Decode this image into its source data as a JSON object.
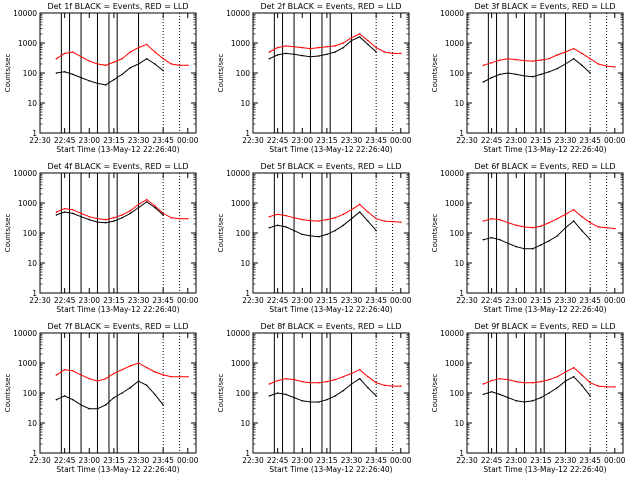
{
  "page": {
    "title": ""
  },
  "axes": {
    "ylabel": "Counts/sec",
    "xlabel_prefix": "Start Time (13-May-12 22:26:40)",
    "x_tick_labels": [
      "22:30",
      "22:45",
      "23:00",
      "23:15",
      "23:30",
      "23:45",
      "00:00"
    ],
    "y_tick_labels": [
      "1",
      "10",
      "100",
      "1000",
      "10000"
    ]
  },
  "colors": {
    "events": "#000000",
    "lld": "#ff0000",
    "frame": "#000000"
  },
  "chart_data": [
    {
      "type": "line",
      "title": "Det 1f BLACK = Events, RED = LLD",
      "xlabel": "Start Time (13-May-12 22:26:40)",
      "ylabel": "Counts/sec",
      "x_ticks": [
        "22:30",
        "22:45",
        "23:00",
        "23:15",
        "23:30",
        "23:45",
        "00:00"
      ],
      "ylim": [
        1,
        10000
      ],
      "yscale": "log",
      "x": [
        "22:40",
        "22:45",
        "22:50",
        "22:55",
        "23:00",
        "23:05",
        "23:10",
        "23:15",
        "23:20",
        "23:25",
        "23:30",
        "23:35",
        "23:40",
        "23:45",
        "23:50",
        "23:55",
        "00:00"
      ],
      "series": [
        {
          "name": "Events",
          "color": "#000000",
          "values": [
            100,
            110,
            90,
            70,
            55,
            45,
            40,
            60,
            90,
            150,
            200,
            300,
            200,
            120,
            null,
            null,
            null
          ]
        },
        {
          "name": "LLD",
          "color": "#ff0000",
          "values": [
            300,
            450,
            500,
            350,
            250,
            200,
            180,
            230,
            300,
            500,
            700,
            900,
            500,
            300,
            200,
            180,
            180
          ]
        }
      ],
      "vlines": [
        "22:43",
        "22:48",
        "22:55",
        "23:05",
        "23:12",
        "23:17",
        "23:30"
      ],
      "dotted_vlines": [
        "23:45",
        "23:55"
      ]
    },
    {
      "type": "line",
      "title": "Det 2f BLACK = Events, RED = LLD",
      "xlabel": "Start Time (13-May-12 22:26:40)",
      "ylabel": "Counts/sec",
      "x_ticks": [
        "22:30",
        "22:45",
        "23:00",
        "23:15",
        "23:30",
        "23:45",
        "00:00"
      ],
      "ylim": [
        1,
        10000
      ],
      "yscale": "log",
      "x": [
        "22:40",
        "22:45",
        "22:50",
        "22:55",
        "23:00",
        "23:05",
        "23:10",
        "23:15",
        "23:20",
        "23:25",
        "23:30",
        "23:35",
        "23:40",
        "23:45",
        "23:50",
        "23:55",
        "00:00"
      ],
      "series": [
        {
          "name": "Events",
          "color": "#000000",
          "values": [
            300,
            400,
            450,
            420,
            380,
            350,
            370,
            420,
            500,
            700,
            1200,
            1600,
            900,
            500,
            null,
            null,
            null
          ]
        },
        {
          "name": "LLD",
          "color": "#ff0000",
          "values": [
            500,
            700,
            800,
            750,
            700,
            650,
            700,
            750,
            800,
            1000,
            1500,
            2000,
            1200,
            700,
            500,
            450,
            450
          ]
        }
      ],
      "vlines": [
        "22:43",
        "22:48",
        "22:55",
        "23:05",
        "23:12",
        "23:17",
        "23:30"
      ],
      "dotted_vlines": [
        "23:45",
        "23:55"
      ]
    },
    {
      "type": "line",
      "title": "Det 3f BLACK = Events, RED = LLD",
      "xlabel": "Start Time (13-May-12 22:26:40)",
      "ylabel": "Counts/sec",
      "x_ticks": [
        "22:30",
        "22:45",
        "23:00",
        "23:15",
        "23:30",
        "23:45",
        "00:00"
      ],
      "ylim": [
        1,
        10000
      ],
      "yscale": "log",
      "x": [
        "22:40",
        "22:45",
        "22:50",
        "22:55",
        "23:00",
        "23:05",
        "23:10",
        "23:15",
        "23:20",
        "23:25",
        "23:30",
        "23:35",
        "23:40",
        "23:45",
        "23:50",
        "23:55",
        "00:00"
      ],
      "series": [
        {
          "name": "Events",
          "color": "#000000",
          "values": [
            50,
            70,
            90,
            100,
            90,
            80,
            75,
            90,
            110,
            140,
            200,
            300,
            180,
            100,
            null,
            null,
            null
          ]
        },
        {
          "name": "LLD",
          "color": "#ff0000",
          "values": [
            180,
            220,
            270,
            300,
            280,
            260,
            250,
            270,
            300,
            400,
            500,
            650,
            450,
            300,
            200,
            170,
            160
          ]
        }
      ],
      "vlines": [
        "22:43",
        "22:48",
        "22:55",
        "23:05",
        "23:12",
        "23:17",
        "23:30"
      ],
      "dotted_vlines": [
        "23:45",
        "23:55"
      ]
    },
    {
      "type": "line",
      "title": "Det 4f BLACK = Events, RED = LLD",
      "xlabel": "Start Time (13-May-12 22:26:40)",
      "ylabel": "Counts/sec",
      "x_ticks": [
        "22:30",
        "22:45",
        "23:00",
        "23:15",
        "23:30",
        "23:45",
        "00:00"
      ],
      "ylim": [
        1,
        10000
      ],
      "yscale": "log",
      "x": [
        "22:40",
        "22:45",
        "22:50",
        "22:55",
        "23:00",
        "23:05",
        "23:10",
        "23:15",
        "23:20",
        "23:25",
        "23:30",
        "23:35",
        "23:40",
        "23:45",
        "23:50",
        "23:55",
        "00:00"
      ],
      "series": [
        {
          "name": "Events",
          "color": "#000000",
          "values": [
            400,
            500,
            450,
            350,
            280,
            230,
            220,
            250,
            320,
            450,
            700,
            1100,
            700,
            400,
            null,
            null,
            null
          ]
        },
        {
          "name": "LLD",
          "color": "#ff0000",
          "values": [
            500,
            650,
            600,
            450,
            350,
            300,
            280,
            320,
            400,
            550,
            900,
            1300,
            800,
            450,
            320,
            300,
            300
          ]
        }
      ],
      "vlines": [
        "22:43",
        "22:48",
        "22:55",
        "23:05",
        "23:12",
        "23:17",
        "23:30"
      ],
      "dotted_vlines": [
        "23:45",
        "23:55"
      ]
    },
    {
      "type": "line",
      "title": "Det 5f BLACK = Events, RED = LLD",
      "xlabel": "Start Time (13-May-12 22:26:40)",
      "ylabel": "Counts/sec",
      "x_ticks": [
        "22:30",
        "22:45",
        "23:00",
        "23:15",
        "23:30",
        "23:45",
        "00:00"
      ],
      "ylim": [
        1,
        10000
      ],
      "yscale": "log",
      "x": [
        "22:40",
        "22:45",
        "22:50",
        "22:55",
        "23:00",
        "23:05",
        "23:10",
        "23:15",
        "23:20",
        "23:25",
        "23:30",
        "23:35",
        "23:40",
        "23:45",
        "23:50",
        "23:55",
        "00:00"
      ],
      "series": [
        {
          "name": "Events",
          "color": "#000000",
          "values": [
            150,
            180,
            160,
            120,
            90,
            80,
            75,
            90,
            120,
            180,
            300,
            500,
            250,
            120,
            null,
            null,
            null
          ]
        },
        {
          "name": "LLD",
          "color": "#ff0000",
          "values": [
            350,
            420,
            380,
            320,
            280,
            260,
            250,
            280,
            320,
            420,
            600,
            900,
            500,
            300,
            250,
            240,
            230
          ]
        }
      ],
      "vlines": [
        "22:43",
        "22:48",
        "22:55",
        "23:05",
        "23:12",
        "23:17",
        "23:30"
      ],
      "dotted_vlines": [
        "23:45",
        "23:55"
      ]
    },
    {
      "type": "line",
      "title": "Det 6f BLACK = Events, RED = LLD",
      "xlabel": "Start Time (13-May-12 22:26:40)",
      "ylabel": "Counts/sec",
      "x_ticks": [
        "22:30",
        "22:45",
        "23:00",
        "23:15",
        "23:30",
        "23:45",
        "00:00"
      ],
      "ylim": [
        1,
        10000
      ],
      "yscale": "log",
      "x": [
        "22:40",
        "22:45",
        "22:50",
        "22:55",
        "23:00",
        "23:05",
        "23:10",
        "23:15",
        "23:20",
        "23:25",
        "23:30",
        "23:35",
        "23:40",
        "23:45",
        "23:50",
        "23:55",
        "00:00"
      ],
      "series": [
        {
          "name": "Events",
          "color": "#000000",
          "values": [
            60,
            70,
            60,
            45,
            35,
            30,
            30,
            40,
            55,
            80,
            150,
            250,
            120,
            60,
            null,
            null,
            null
          ]
        },
        {
          "name": "LLD",
          "color": "#ff0000",
          "values": [
            250,
            300,
            280,
            220,
            180,
            160,
            150,
            170,
            220,
            300,
            420,
            600,
            350,
            220,
            160,
            150,
            140
          ]
        }
      ],
      "vlines": [
        "22:43",
        "22:48",
        "22:55",
        "23:05",
        "23:12",
        "23:17",
        "23:30"
      ],
      "dotted_vlines": [
        "23:45",
        "23:55"
      ]
    },
    {
      "type": "line",
      "title": "Det 7f BLACK = Events, RED = LLD",
      "xlabel": "Start Time (13-May-12 22:26:40)",
      "ylabel": "Counts/sec",
      "x_ticks": [
        "22:30",
        "22:45",
        "23:00",
        "23:15",
        "23:30",
        "23:45",
        "00:00"
      ],
      "ylim": [
        1,
        10000
      ],
      "yscale": "log",
      "x": [
        "22:40",
        "22:45",
        "22:50",
        "22:55",
        "23:00",
        "23:05",
        "23:10",
        "23:15",
        "23:20",
        "23:25",
        "23:30",
        "23:35",
        "23:40",
        "23:45",
        "23:50",
        "23:55",
        "00:00"
      ],
      "series": [
        {
          "name": "Events",
          "color": "#000000",
          "values": [
            60,
            80,
            60,
            40,
            30,
            30,
            40,
            70,
            100,
            150,
            250,
            180,
            90,
            40,
            null,
            null,
            null
          ]
        },
        {
          "name": "LLD",
          "color": "#ff0000",
          "values": [
            400,
            600,
            550,
            400,
            300,
            250,
            300,
            450,
            600,
            800,
            1000,
            700,
            500,
            400,
            350,
            350,
            350
          ]
        }
      ],
      "vlines": [
        "22:43",
        "22:48",
        "22:55",
        "23:05",
        "23:12",
        "23:17",
        "23:30"
      ],
      "dotted_vlines": [
        "23:45",
        "23:55"
      ]
    },
    {
      "type": "line",
      "title": "Det 8f BLACK = Events, RED = LLD",
      "xlabel": "Start Time (13-May-12 22:26:40)",
      "ylabel": "Counts/sec",
      "x_ticks": [
        "22:30",
        "22:45",
        "23:00",
        "23:15",
        "23:30",
        "23:45",
        "00:00"
      ],
      "ylim": [
        1,
        10000
      ],
      "yscale": "log",
      "x": [
        "22:40",
        "22:45",
        "22:50",
        "22:55",
        "23:00",
        "23:05",
        "23:10",
        "23:15",
        "23:20",
        "23:25",
        "23:30",
        "23:35",
        "23:40",
        "23:45",
        "23:50",
        "23:55",
        "00:00"
      ],
      "series": [
        {
          "name": "Events",
          "color": "#000000",
          "values": [
            80,
            100,
            90,
            70,
            55,
            50,
            50,
            60,
            80,
            120,
            200,
            300,
            150,
            80,
            null,
            null,
            null
          ]
        },
        {
          "name": "LLD",
          "color": "#ff0000",
          "values": [
            200,
            260,
            300,
            280,
            240,
            220,
            220,
            240,
            280,
            350,
            450,
            600,
            350,
            220,
            180,
            170,
            170
          ]
        }
      ],
      "vlines": [
        "22:43",
        "22:48",
        "22:55",
        "23:05",
        "23:12",
        "23:17",
        "23:30"
      ],
      "dotted_vlines": [
        "23:45",
        "23:55"
      ]
    },
    {
      "type": "line",
      "title": "Det 9f BLACK = Events, RED = LLD",
      "xlabel": "Start Time (13-May-12 22:26:40)",
      "ylabel": "Counts/sec",
      "x_ticks": [
        "22:30",
        "22:45",
        "23:00",
        "23:15",
        "23:30",
        "23:45",
        "00:00"
      ],
      "ylim": [
        1,
        10000
      ],
      "yscale": "log",
      "x": [
        "22:40",
        "22:45",
        "22:50",
        "22:55",
        "23:00",
        "23:05",
        "23:10",
        "23:15",
        "23:20",
        "23:25",
        "23:30",
        "23:35",
        "23:40",
        "23:45",
        "23:50",
        "23:55",
        "00:00"
      ],
      "series": [
        {
          "name": "Events",
          "color": "#000000",
          "values": [
            90,
            110,
            90,
            70,
            55,
            50,
            55,
            70,
            100,
            150,
            250,
            350,
            180,
            80,
            null,
            null,
            null
          ]
        },
        {
          "name": "LLD",
          "color": "#ff0000",
          "values": [
            200,
            260,
            300,
            280,
            240,
            220,
            220,
            240,
            280,
            350,
            500,
            700,
            400,
            220,
            170,
            160,
            160
          ]
        }
      ],
      "vlines": [
        "22:43",
        "22:48",
        "22:55",
        "23:05",
        "23:12",
        "23:17",
        "23:30"
      ],
      "dotted_vlines": [
        "23:45",
        "23:55"
      ]
    }
  ]
}
